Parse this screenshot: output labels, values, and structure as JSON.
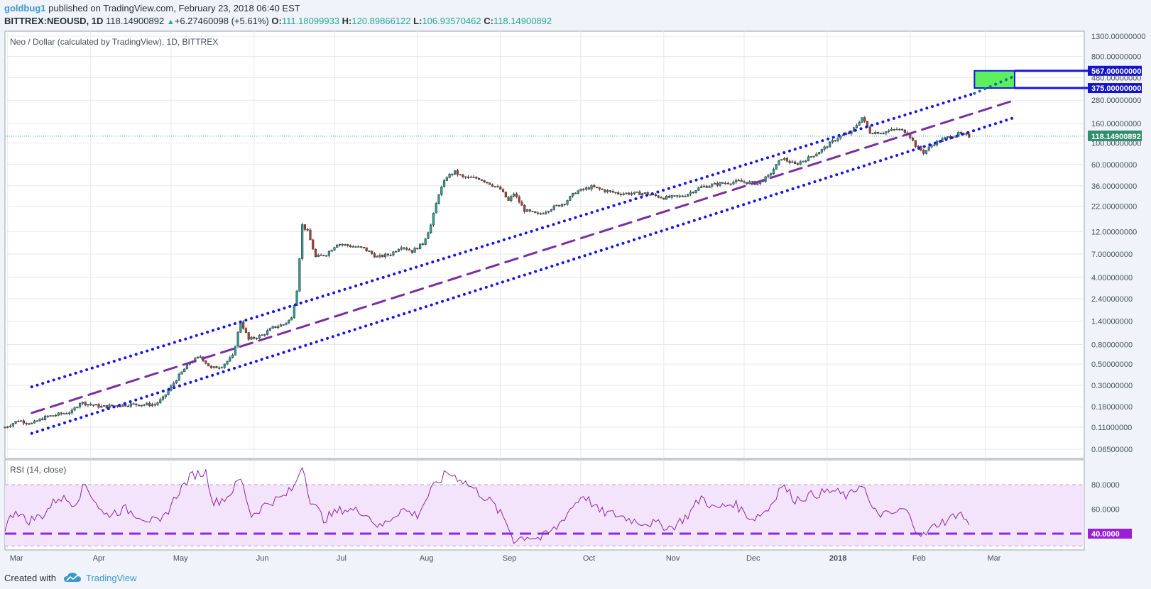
{
  "header": {
    "author": "goldbug1",
    "published": "published on TradingView.com, February 23, 2018 06:40 EST",
    "symbol": "BITTREX:NEOUSD, 1D",
    "last": "118.14900892",
    "change": "+6.27460098 (+5.61%)",
    "up_arrow": "▲",
    "o_label": "O:",
    "o": "111.18099933",
    "h_label": "H:",
    "h": "120.89866122",
    "l_label": "L:",
    "l": "106.93570462",
    "c_label": "C:",
    "c": "118.14900892"
  },
  "footer": {
    "created": "Created with",
    "brand": "TradingView"
  },
  "colors": {
    "up": "#26a69a",
    "down": "#c0392b",
    "channel": "#1414e6",
    "midline": "#7b2d9e",
    "rsi": "#8a2be2",
    "target_fill": "#5cf05c"
  },
  "chart_data": [
    {
      "type": "candlestick",
      "title": "Neo / Dollar (calculated by TradingView), 1D, BITTREX",
      "scale": "log",
      "y_ticks": [
        1300,
        800,
        480,
        280,
        160,
        100,
        60,
        36,
        22,
        12,
        7,
        4,
        2.4,
        1.4,
        0.8,
        0.5,
        0.3,
        0.18,
        0.11,
        0.065
      ],
      "y_tick_labels": [
        "1300.00000000",
        "800.00000000",
        "480.00000000",
        "280.00000000",
        "160.00000000",
        "100.00000000",
        "60.00000000",
        "36.00000000",
        "22.00000000",
        "12.00000000",
        "7.00000000",
        "4.00000000",
        "2.40000000",
        "1.40000000",
        "0.80000000",
        "0.50000000",
        "0.30000000",
        "0.18000000",
        "0.11000000",
        "0.06500000"
      ],
      "x_ticks": [
        "Mar",
        "Apr",
        "May",
        "Jun",
        "Jul",
        "Aug",
        "Sep",
        "Oct",
        "Nov",
        "Dec",
        "2018",
        "Feb",
        "Mar"
      ],
      "x_tick_dates": [
        "2017-03-01",
        "2017-04-01",
        "2017-05-01",
        "2017-06-01",
        "2017-07-01",
        "2017-08-01",
        "2017-09-01",
        "2017-10-01",
        "2017-11-01",
        "2017-12-01",
        "2018-01-01",
        "2018-02-01",
        "2018-03-01"
      ],
      "x_range": [
        "2017-02-28",
        "2018-04-07"
      ],
      "last_price_label": "118.14900892",
      "last_price": 118.149,
      "price_path": [
        [
          "2017-02-28",
          0.11
        ],
        [
          "2017-03-05",
          0.13
        ],
        [
          "2017-03-10",
          0.12
        ],
        [
          "2017-03-15",
          0.14
        ],
        [
          "2017-03-20",
          0.15
        ],
        [
          "2017-03-25",
          0.16
        ],
        [
          "2017-03-28",
          0.2
        ],
        [
          "2017-04-05",
          0.18
        ],
        [
          "2017-04-15",
          0.19
        ],
        [
          "2017-04-25",
          0.19
        ],
        [
          "2017-04-28",
          0.22
        ],
        [
          "2017-05-03",
          0.35
        ],
        [
          "2017-05-08",
          0.52
        ],
        [
          "2017-05-12",
          0.6
        ],
        [
          "2017-05-16",
          0.45
        ],
        [
          "2017-05-20",
          0.48
        ],
        [
          "2017-05-24",
          0.6
        ],
        [
          "2017-05-27",
          1.4
        ],
        [
          "2017-05-30",
          0.9
        ],
        [
          "2017-06-04",
          1.0
        ],
        [
          "2017-06-08",
          1.2
        ],
        [
          "2017-06-12",
          1.3
        ],
        [
          "2017-06-15",
          1.5
        ],
        [
          "2017-06-17",
          3.0
        ],
        [
          "2017-06-19",
          14
        ],
        [
          "2017-06-21",
          12
        ],
        [
          "2017-06-24",
          6.5
        ],
        [
          "2017-06-28",
          7
        ],
        [
          "2017-07-02",
          9
        ],
        [
          "2017-07-07",
          8.5
        ],
        [
          "2017-07-12",
          8
        ],
        [
          "2017-07-17",
          6.5
        ],
        [
          "2017-07-22",
          7
        ],
        [
          "2017-07-26",
          8.5
        ],
        [
          "2017-07-30",
          7.5
        ],
        [
          "2017-08-03",
          9
        ],
        [
          "2017-08-06",
          14
        ],
        [
          "2017-08-09",
          30
        ],
        [
          "2017-08-12",
          45
        ],
        [
          "2017-08-15",
          50
        ],
        [
          "2017-08-18",
          44
        ],
        [
          "2017-08-24",
          43
        ],
        [
          "2017-08-28",
          38
        ],
        [
          "2017-09-01",
          33
        ],
        [
          "2017-09-04",
          25
        ],
        [
          "2017-09-06",
          30
        ],
        [
          "2017-09-10",
          20
        ],
        [
          "2017-09-15",
          18
        ],
        [
          "2017-09-20",
          21
        ],
        [
          "2017-09-25",
          24
        ],
        [
          "2017-09-29",
          31
        ],
        [
          "2017-10-05",
          35
        ],
        [
          "2017-10-10",
          32
        ],
        [
          "2017-10-15",
          30
        ],
        [
          "2017-10-25",
          30
        ],
        [
          "2017-11-01",
          27
        ],
        [
          "2017-11-08",
          28
        ],
        [
          "2017-11-15",
          35
        ],
        [
          "2017-11-22",
          38
        ],
        [
          "2017-11-29",
          40
        ],
        [
          "2017-12-06",
          38
        ],
        [
          "2017-12-10",
          45
        ],
        [
          "2017-12-15",
          70
        ],
        [
          "2017-12-20",
          60
        ],
        [
          "2017-12-25",
          70
        ],
        [
          "2017-12-30",
          85
        ],
        [
          "2018-01-05",
          115
        ],
        [
          "2018-01-10",
          130
        ],
        [
          "2018-01-14",
          185
        ],
        [
          "2018-01-17",
          130
        ],
        [
          "2018-01-22",
          130
        ],
        [
          "2018-01-27",
          140
        ],
        [
          "2018-01-31",
          130
        ],
        [
          "2018-02-03",
          95
        ],
        [
          "2018-02-06",
          80
        ],
        [
          "2018-02-10",
          100
        ],
        [
          "2018-02-15",
          115
        ],
        [
          "2018-02-19",
          125
        ],
        [
          "2018-02-23",
          118.15
        ]
      ],
      "channel_upper": [
        [
          "2017-03-10",
          0.29
        ],
        [
          "2018-02-25",
          330
        ]
      ],
      "channel_mid": [
        [
          "2017-03-10",
          0.155
        ],
        [
          "2018-03-12",
          280
        ]
      ],
      "channel_lower": [
        [
          "2017-03-10",
          0.095
        ],
        [
          "2018-03-12",
          185
        ]
      ],
      "channel_upper_ext": [
        [
          "2018-02-25",
          330
        ],
        [
          "2018-03-12",
          500
        ]
      ],
      "target_box": {
        "from": "2018-02-25",
        "to": "2018-03-12",
        "high": 567,
        "low": 375
      },
      "target_labels": [
        "567.00000000",
        "375.00000000"
      ]
    },
    {
      "type": "line",
      "title": "RSI (14, close)",
      "y_ticks": [
        80,
        60,
        40
      ],
      "y_tick_labels": [
        "80.0000",
        "60.0000",
        "40.0000"
      ],
      "band": [
        30,
        80
      ],
      "highlight_level": 40,
      "highlight_label": "40.0000",
      "rsi_path": [
        [
          "2017-02-28",
          45
        ],
        [
          "2017-03-04",
          60
        ],
        [
          "2017-03-08",
          50
        ],
        [
          "2017-03-14",
          55
        ],
        [
          "2017-03-20",
          70
        ],
        [
          "2017-03-26",
          65
        ],
        [
          "2017-03-30",
          80
        ],
        [
          "2017-04-06",
          55
        ],
        [
          "2017-04-14",
          60
        ],
        [
          "2017-04-22",
          52
        ],
        [
          "2017-04-27",
          48
        ],
        [
          "2017-05-04",
          75
        ],
        [
          "2017-05-09",
          88
        ],
        [
          "2017-05-14",
          90
        ],
        [
          "2017-05-17",
          65
        ],
        [
          "2017-05-22",
          70
        ],
        [
          "2017-05-27",
          85
        ],
        [
          "2017-05-31",
          55
        ],
        [
          "2017-06-06",
          65
        ],
        [
          "2017-06-12",
          70
        ],
        [
          "2017-06-16",
          78
        ],
        [
          "2017-06-19",
          97
        ],
        [
          "2017-06-22",
          68
        ],
        [
          "2017-06-27",
          52
        ],
        [
          "2017-07-04",
          60
        ],
        [
          "2017-07-12",
          58
        ],
        [
          "2017-07-18",
          45
        ],
        [
          "2017-07-26",
          60
        ],
        [
          "2017-08-01",
          55
        ],
        [
          "2017-08-06",
          75
        ],
        [
          "2017-08-12",
          90
        ],
        [
          "2017-08-17",
          85
        ],
        [
          "2017-08-23",
          75
        ],
        [
          "2017-08-29",
          65
        ],
        [
          "2017-09-03",
          50
        ],
        [
          "2017-09-06",
          35
        ],
        [
          "2017-09-11",
          38
        ],
        [
          "2017-09-16",
          36
        ],
        [
          "2017-09-22",
          45
        ],
        [
          "2017-09-27",
          60
        ],
        [
          "2017-10-02",
          72
        ],
        [
          "2017-10-08",
          58
        ],
        [
          "2017-10-15",
          55
        ],
        [
          "2017-10-22",
          50
        ],
        [
          "2017-10-29",
          48
        ],
        [
          "2017-11-04",
          45
        ],
        [
          "2017-11-10",
          55
        ],
        [
          "2017-11-15",
          70
        ],
        [
          "2017-11-20",
          60
        ],
        [
          "2017-11-27",
          65
        ],
        [
          "2017-12-04",
          52
        ],
        [
          "2017-12-10",
          60
        ],
        [
          "2017-12-15",
          80
        ],
        [
          "2017-12-20",
          68
        ],
        [
          "2017-12-27",
          72
        ],
        [
          "2018-01-03",
          75
        ],
        [
          "2018-01-09",
          70
        ],
        [
          "2018-01-14",
          82
        ],
        [
          "2018-01-18",
          58
        ],
        [
          "2018-01-24",
          55
        ],
        [
          "2018-01-30",
          60
        ],
        [
          "2018-02-03",
          45
        ],
        [
          "2018-02-06",
          38
        ],
        [
          "2018-02-11",
          48
        ],
        [
          "2018-02-16",
          52
        ],
        [
          "2018-02-19",
          58
        ],
        [
          "2018-02-23",
          48
        ]
      ]
    }
  ]
}
